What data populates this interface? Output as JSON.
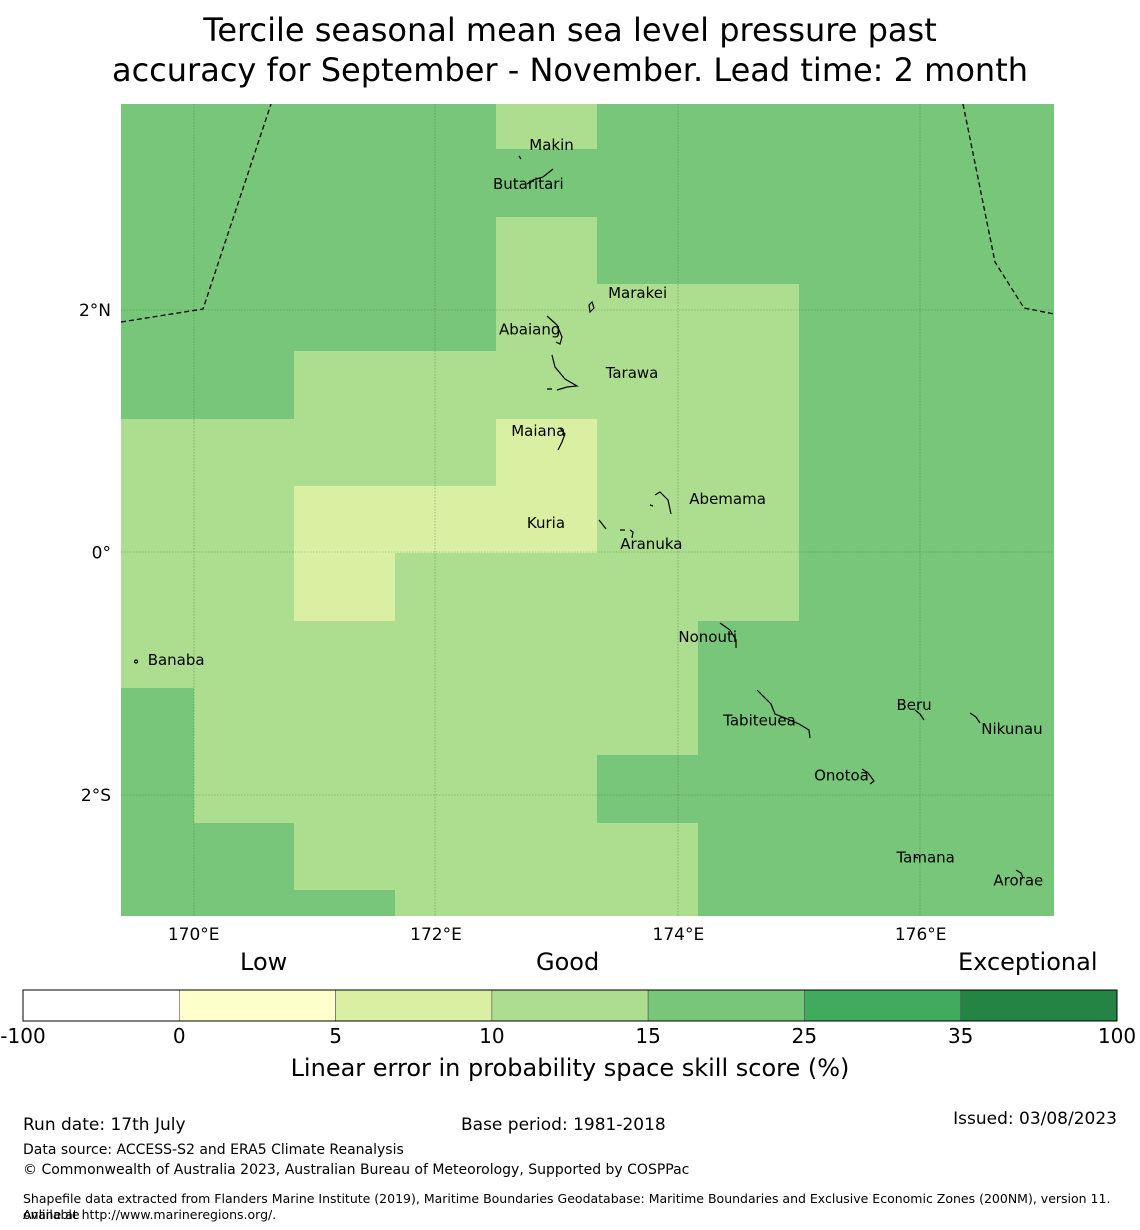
{
  "title": {
    "line1": "Tercile seasonal mean sea level pressure past",
    "line2": "accuracy for September - November. Lead time: 2 month"
  },
  "map": {
    "lon_range": [
      169.4,
      177.1
    ],
    "lat_range": [
      -3.0,
      3.7
    ],
    "lon_ticks": [
      {
        "value": 170,
        "label": "170°E"
      },
      {
        "value": 172,
        "label": "172°E"
      },
      {
        "value": 174,
        "label": "174°E"
      },
      {
        "value": 176,
        "label": "176°E"
      }
    ],
    "lat_ticks": [
      {
        "value": 2,
        "label": "2°N"
      },
      {
        "value": 0,
        "label": "0°"
      },
      {
        "value": -2,
        "label": "2°S"
      }
    ],
    "place_labels": [
      {
        "name": "Makin",
        "lon": 172.77,
        "lat": 3.32
      },
      {
        "name": "Butaritari",
        "lon": 172.47,
        "lat": 3.0
      },
      {
        "name": "Marakei",
        "lon": 173.42,
        "lat": 2.1
      },
      {
        "name": "Abaiang",
        "lon": 172.52,
        "lat": 1.8
      },
      {
        "name": "Tarawa",
        "lon": 173.4,
        "lat": 1.44
      },
      {
        "name": "Maiana",
        "lon": 172.62,
        "lat": 0.96
      },
      {
        "name": "Abemama",
        "lon": 174.09,
        "lat": 0.4
      },
      {
        "name": "Kuria",
        "lon": 172.75,
        "lat": 0.2
      },
      {
        "name": "Aranuka",
        "lon": 173.52,
        "lat": 0.03
      },
      {
        "name": "Nonouti",
        "lon": 174.0,
        "lat": -0.74
      },
      {
        "name": "Banaba",
        "lon": 169.62,
        "lat": -0.93
      },
      {
        "name": "Beru",
        "lon": 175.8,
        "lat": -1.3
      },
      {
        "name": "Tabiteuea",
        "lon": 174.37,
        "lat": -1.43
      },
      {
        "name": "Nikunau",
        "lon": 176.5,
        "lat": -1.5
      },
      {
        "name": "Onotoa",
        "lon": 175.12,
        "lat": -1.88
      },
      {
        "name": "Tamana",
        "lon": 175.8,
        "lat": -2.56
      },
      {
        "name": "Arorae",
        "lon": 176.6,
        "lat": -2.75
      }
    ]
  },
  "colorbar": {
    "category_labels": {
      "low": "Low",
      "good": "Good",
      "exceptional": "Exceptional"
    },
    "colors": [
      "#ffffff",
      "#ffffcc",
      "#d9f0a3",
      "#addd8e",
      "#78c679",
      "#41ab5d",
      "#238443"
    ],
    "ticks": [
      "-100",
      "0",
      "5",
      "10",
      "15",
      "25",
      "35",
      "100"
    ],
    "title": "Linear error in probability space skill score (%)"
  },
  "footer": {
    "run_date": "Run date: 17th July",
    "base_period": "Base period: 1981-2018",
    "issued": "Issued: 03/08/2023",
    "data_source": "Data source: ACCESS-S2 and ERA5 Climate Reanalysis",
    "copyright": "© Commonwealth of Australia 2023, Australian Bureau of Meteorology, Supported by COSPPac",
    "shapefile_line1": "Shapefile data extracted from Flanders Marine Institute (2019), Maritime Boundaries Geodatabase: Maritime Boundaries and Exclusive Economic Zones (200NM), version 11. Available",
    "shapefile_line2": "online at http://www.marineregions.org/."
  }
}
